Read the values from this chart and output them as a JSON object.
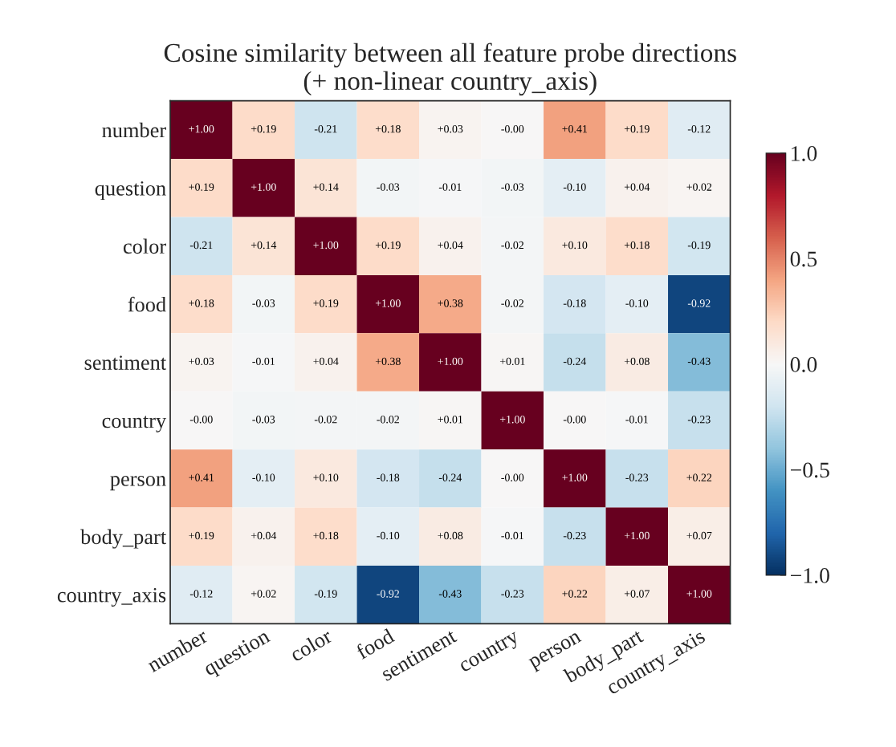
{
  "chart_data": {
    "type": "heatmap",
    "title": "Cosine similarity between all feature probe directions\n(+ non-linear country_axis)",
    "categories": [
      "number",
      "question",
      "color",
      "food",
      "sentiment",
      "country",
      "person",
      "body_part",
      "country_axis"
    ],
    "y_categories": [
      "number",
      "question",
      "color",
      "food",
      "sentiment",
      "country",
      "person",
      "body_part",
      "country_axis"
    ],
    "cells": [
      [
        1.0,
        0.19,
        -0.21,
        0.18,
        0.03,
        0.0,
        0.41,
        0.19,
        -0.12
      ],
      [
        0.19,
        1.0,
        0.14,
        -0.03,
        -0.01,
        -0.03,
        -0.1,
        0.04,
        0.02
      ],
      [
        -0.21,
        0.14,
        1.0,
        0.19,
        0.04,
        -0.02,
        0.1,
        0.18,
        -0.19
      ],
      [
        0.18,
        -0.03,
        0.19,
        1.0,
        0.38,
        -0.02,
        -0.18,
        -0.1,
        -0.92
      ],
      [
        0.03,
        -0.01,
        0.04,
        0.38,
        1.0,
        0.01,
        -0.24,
        0.08,
        -0.43
      ],
      [
        0.0,
        -0.03,
        -0.02,
        -0.02,
        0.01,
        1.0,
        0.0,
        -0.01,
        -0.23
      ],
      [
        0.41,
        -0.1,
        0.1,
        -0.18,
        -0.24,
        0.0,
        1.0,
        -0.23,
        0.22
      ],
      [
        0.19,
        0.04,
        0.18,
        -0.1,
        0.08,
        -0.01,
        -0.23,
        1.0,
        0.07
      ],
      [
        -0.12,
        0.02,
        -0.19,
        -0.92,
        -0.43,
        -0.23,
        0.22,
        0.07,
        1.0
      ]
    ],
    "cell_labels": [
      [
        "+1.00",
        "+0.19",
        "-0.21",
        "+0.18",
        "+0.03",
        "-0.00",
        "+0.41",
        "+0.19",
        "-0.12"
      ],
      [
        "+0.19",
        "+1.00",
        "+0.14",
        "-0.03",
        "-0.01",
        "-0.03",
        "-0.10",
        "+0.04",
        "+0.02"
      ],
      [
        "-0.21",
        "+0.14",
        "+1.00",
        "+0.19",
        "+0.04",
        "-0.02",
        "+0.10",
        "+0.18",
        "-0.19"
      ],
      [
        "+0.18",
        "-0.03",
        "+0.19",
        "+1.00",
        "+0.38",
        "-0.02",
        "-0.18",
        "-0.10",
        "-0.92"
      ],
      [
        "+0.03",
        "-0.01",
        "+0.04",
        "+0.38",
        "+1.00",
        "+0.01",
        "-0.24",
        "+0.08",
        "-0.43"
      ],
      [
        "-0.00",
        "-0.03",
        "-0.02",
        "-0.02",
        "+0.01",
        "+1.00",
        "-0.00",
        "-0.01",
        "-0.23"
      ],
      [
        "+0.41",
        "-0.10",
        "+0.10",
        "-0.18",
        "-0.24",
        "-0.00",
        "+1.00",
        "-0.23",
        "+0.22"
      ],
      [
        "+0.19",
        "+0.04",
        "+0.18",
        "-0.10",
        "+0.08",
        "-0.01",
        "-0.23",
        "+1.00",
        "+0.07"
      ],
      [
        "-0.12",
        "+0.02",
        "-0.19",
        "-0.92",
        "-0.43",
        "-0.23",
        "+0.22",
        "+0.07",
        "+1.00"
      ]
    ],
    "clim": [
      -1.0,
      1.0
    ],
    "cticks": [
      {
        "value": -1.0,
        "label": "−1.0"
      },
      {
        "value": -0.5,
        "label": "−0.5"
      },
      {
        "value": 0.0,
        "label": "0.0"
      },
      {
        "value": 0.5,
        "label": "0.5"
      },
      {
        "value": 1.0,
        "label": "1.0"
      }
    ]
  }
}
